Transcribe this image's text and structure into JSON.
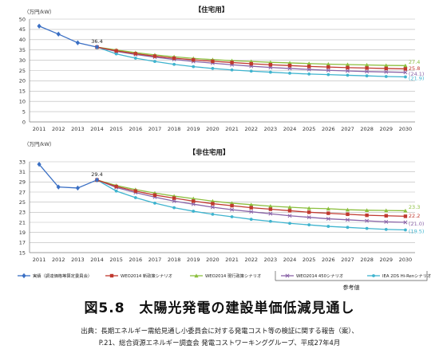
{
  "figure": {
    "title": "図5.8　太陽光発電の建設単価低減見通し",
    "source_line1": "出典：長期エネルギー需給見通し小委員会に対する発電コスト等の検証に関する報告（案）、",
    "source_line2": "P.21、総合資源エネルギー調査会 発電コストワーキンググループ、平成27年4月"
  },
  "legend": {
    "items": [
      "実績（調達価格等算定委員会）",
      "WEO2014 新政策シナリオ",
      "WEO2014 現行政策シナリオ",
      "WEO2014 450シナリオ",
      "IEA 2DS Hi-Renシナリオ"
    ],
    "note": "参考値"
  },
  "colors": {
    "actual": "#3a6fc4",
    "new_policies": "#c0392f",
    "current_policies": "#8cbf3f",
    "s450": "#8a64a8",
    "hiren": "#3fb4cf",
    "grid": "#b8b8b8"
  },
  "chart_data": [
    {
      "type": "line",
      "title": "【住宅用】",
      "ylabel": "（万円/kW）",
      "ylim": [
        0,
        50
      ],
      "yticks": [
        0,
        5,
        10,
        15,
        20,
        25,
        30,
        35,
        40,
        45,
        50
      ],
      "x": [
        "2011",
        "2012",
        "2013",
        "2014",
        "2015",
        "2016",
        "2017",
        "2018",
        "2019",
        "2020",
        "2021",
        "2022",
        "2023",
        "2024",
        "2025",
        "2026",
        "2027",
        "2028",
        "2029",
        "2030"
      ],
      "grid": true,
      "annotations": [
        {
          "year": "2014",
          "value": 36.4,
          "text": "36.4"
        }
      ],
      "end_labels": [
        {
          "series": "current_policies",
          "text": "27.4"
        },
        {
          "series": "new_policies",
          "text": "25.8"
        },
        {
          "series": "s450",
          "text": "(24.1)"
        },
        {
          "series": "hiren",
          "text": "(21.9)"
        }
      ],
      "series": [
        {
          "key": "actual",
          "name": "実績（調達価格等算定委員会）",
          "values": [
            46.6,
            42.7,
            38.5,
            36.4,
            null,
            null,
            null,
            null,
            null,
            null,
            null,
            null,
            null,
            null,
            null,
            null,
            null,
            null,
            null,
            null
          ]
        },
        {
          "key": "new_policies",
          "name": "WEO2014 新政策シナリオ",
          "values": [
            null,
            null,
            null,
            36.4,
            34.6,
            33.2,
            32.0,
            31.0,
            30.2,
            29.5,
            28.9,
            28.3,
            27.8,
            27.4,
            27.0,
            26.7,
            26.4,
            26.2,
            26.0,
            25.8
          ]
        },
        {
          "key": "current_policies",
          "name": "WEO2014 現行政策シナリオ",
          "values": [
            null,
            null,
            null,
            36.4,
            35.0,
            33.7,
            32.6,
            31.7,
            30.9,
            30.3,
            29.8,
            29.4,
            29.0,
            28.7,
            28.4,
            28.1,
            27.9,
            27.7,
            27.5,
            27.4
          ]
        },
        {
          "key": "s450",
          "name": "WEO2014 450シナリオ",
          "values": [
            null,
            null,
            null,
            36.4,
            34.3,
            32.8,
            31.5,
            30.4,
            29.4,
            28.6,
            27.8,
            27.1,
            26.5,
            26.0,
            25.5,
            25.1,
            24.8,
            24.5,
            24.3,
            24.1
          ]
        },
        {
          "key": "hiren",
          "name": "IEA 2DS Hi-Renシナリオ",
          "values": [
            null,
            null,
            null,
            36.4,
            33.1,
            31.0,
            29.4,
            28.0,
            26.9,
            26.0,
            25.3,
            24.7,
            24.2,
            23.7,
            23.3,
            23.0,
            22.7,
            22.4,
            22.1,
            21.9
          ]
        }
      ]
    },
    {
      "type": "line",
      "title": "【非住宅用】",
      "ylabel": "（万円/kW）",
      "ylim": [
        15,
        33
      ],
      "yticks": [
        15,
        17,
        19,
        21,
        23,
        25,
        27,
        29,
        31,
        33
      ],
      "x": [
        "2011",
        "2012",
        "2013",
        "2014",
        "2015",
        "2016",
        "2017",
        "2018",
        "2019",
        "2020",
        "2021",
        "2022",
        "2023",
        "2024",
        "2025",
        "2026",
        "2027",
        "2028",
        "2029",
        "2030"
      ],
      "grid": true,
      "annotations": [
        {
          "year": "2014",
          "value": 29.4,
          "text": "29.4"
        }
      ],
      "end_labels": [
        {
          "series": "current_policies",
          "text": "23.3"
        },
        {
          "series": "new_policies",
          "text": "22.2"
        },
        {
          "series": "s450",
          "text": "(21.0)"
        },
        {
          "series": "hiren",
          "text": "(19.5)"
        }
      ],
      "series": [
        {
          "key": "actual",
          "name": "実績（調達価格等算定委員会）",
          "values": [
            32.5,
            28.0,
            27.8,
            29.4,
            null,
            null,
            null,
            null,
            null,
            null,
            null,
            null,
            null,
            null,
            null,
            null,
            null,
            null,
            null,
            null
          ]
        },
        {
          "key": "new_policies",
          "name": "WEO2014 新政策シナリオ",
          "values": [
            null,
            null,
            null,
            29.4,
            28.1,
            27.2,
            26.4,
            25.8,
            25.2,
            24.7,
            24.3,
            23.9,
            23.6,
            23.3,
            23.0,
            22.8,
            22.6,
            22.4,
            22.3,
            22.2
          ]
        },
        {
          "key": "current_policies",
          "name": "WEO2014 現行政策シナリオ",
          "values": [
            null,
            null,
            null,
            29.4,
            28.3,
            27.5,
            26.8,
            26.2,
            25.7,
            25.2,
            24.8,
            24.5,
            24.2,
            24.0,
            23.8,
            23.7,
            23.5,
            23.4,
            23.35,
            23.3
          ]
        },
        {
          "key": "s450",
          "name": "WEO2014 450シナリオ",
          "values": [
            null,
            null,
            null,
            29.4,
            27.9,
            26.9,
            26.0,
            25.2,
            24.6,
            24.0,
            23.5,
            23.1,
            22.7,
            22.3,
            22.0,
            21.7,
            21.5,
            21.3,
            21.1,
            21.0
          ]
        },
        {
          "key": "hiren",
          "name": "IEA 2DS Hi-Renシナリオ",
          "values": [
            null,
            null,
            null,
            29.4,
            27.2,
            25.9,
            24.8,
            23.9,
            23.2,
            22.6,
            22.1,
            21.6,
            21.2,
            20.8,
            20.5,
            20.2,
            20.0,
            19.8,
            19.6,
            19.5
          ]
        }
      ]
    }
  ]
}
